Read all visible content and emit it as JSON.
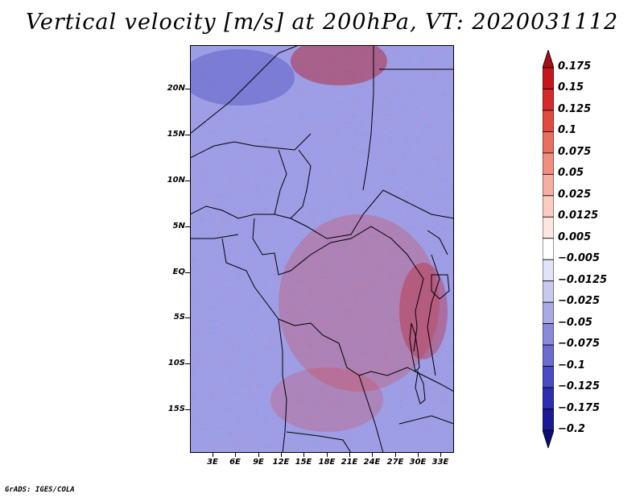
{
  "title": "Vertical velocity [m/s] at 200hPa, VT: 2020031112",
  "map": {
    "lat_labels": [
      "20N",
      "15N",
      "10N",
      "5N",
      "EQ",
      "5S",
      "10S",
      "15S"
    ],
    "lon_labels": [
      "3E",
      "6E",
      "9E",
      "12E",
      "15E",
      "18E",
      "21E",
      "24E",
      "27E",
      "30E",
      "33E"
    ],
    "field": "Vertical velocity",
    "level": "200hPa",
    "valid_time": "2020031112"
  },
  "colorbar": {
    "labels": [
      "0.175",
      "0.15",
      "0.125",
      "0.1",
      "0.075",
      "0.05",
      "0.025",
      "0.0125",
      "0.005",
      "−0.005",
      "−0.0125",
      "−0.025",
      "−0.05",
      "−0.075",
      "−0.1",
      "−0.125",
      "−0.175",
      "−0.2"
    ],
    "colors": [
      "#a50f15",
      "#c4161c",
      "#d42a2a",
      "#e04a3f",
      "#e8705f",
      "#f08f80",
      "#f5aea2",
      "#f9ccc4",
      "#fde6e1",
      "#ffffff",
      "#e3e3f7",
      "#c9c9f0",
      "#a9a9e6",
      "#8a8adc",
      "#6b6bd1",
      "#4b4bc4",
      "#2e2eb1",
      "#1a1a96",
      "#0c0c78"
    ]
  },
  "footer": "GrADS: IGES/COLA"
}
